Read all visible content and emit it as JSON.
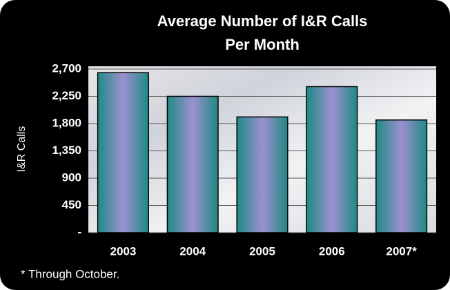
{
  "chart_data": {
    "type": "bar",
    "title": [
      "Average Number of I&R Calls",
      "Per Month"
    ],
    "y_label": "I&R Calls",
    "categories": [
      "2003",
      "2004",
      "2005",
      "2006",
      "2007*"
    ],
    "values": [
      2640,
      2250,
      1910,
      2410,
      1860
    ],
    "color": "#9c90d0",
    "ylim": [
      0,
      2700
    ],
    "yticks": [
      {
        "value": 0,
        "label": "-"
      },
      450,
      900,
      {
        "value": 1350,
        "label": "1,350"
      },
      {
        "value": 1800,
        "label": "1,800"
      },
      {
        "value": 2250,
        "label": "2,250"
      },
      {
        "value": 2700,
        "label": "2,700"
      }
    ],
    "grid": true,
    "footnote": "* Through October."
  }
}
